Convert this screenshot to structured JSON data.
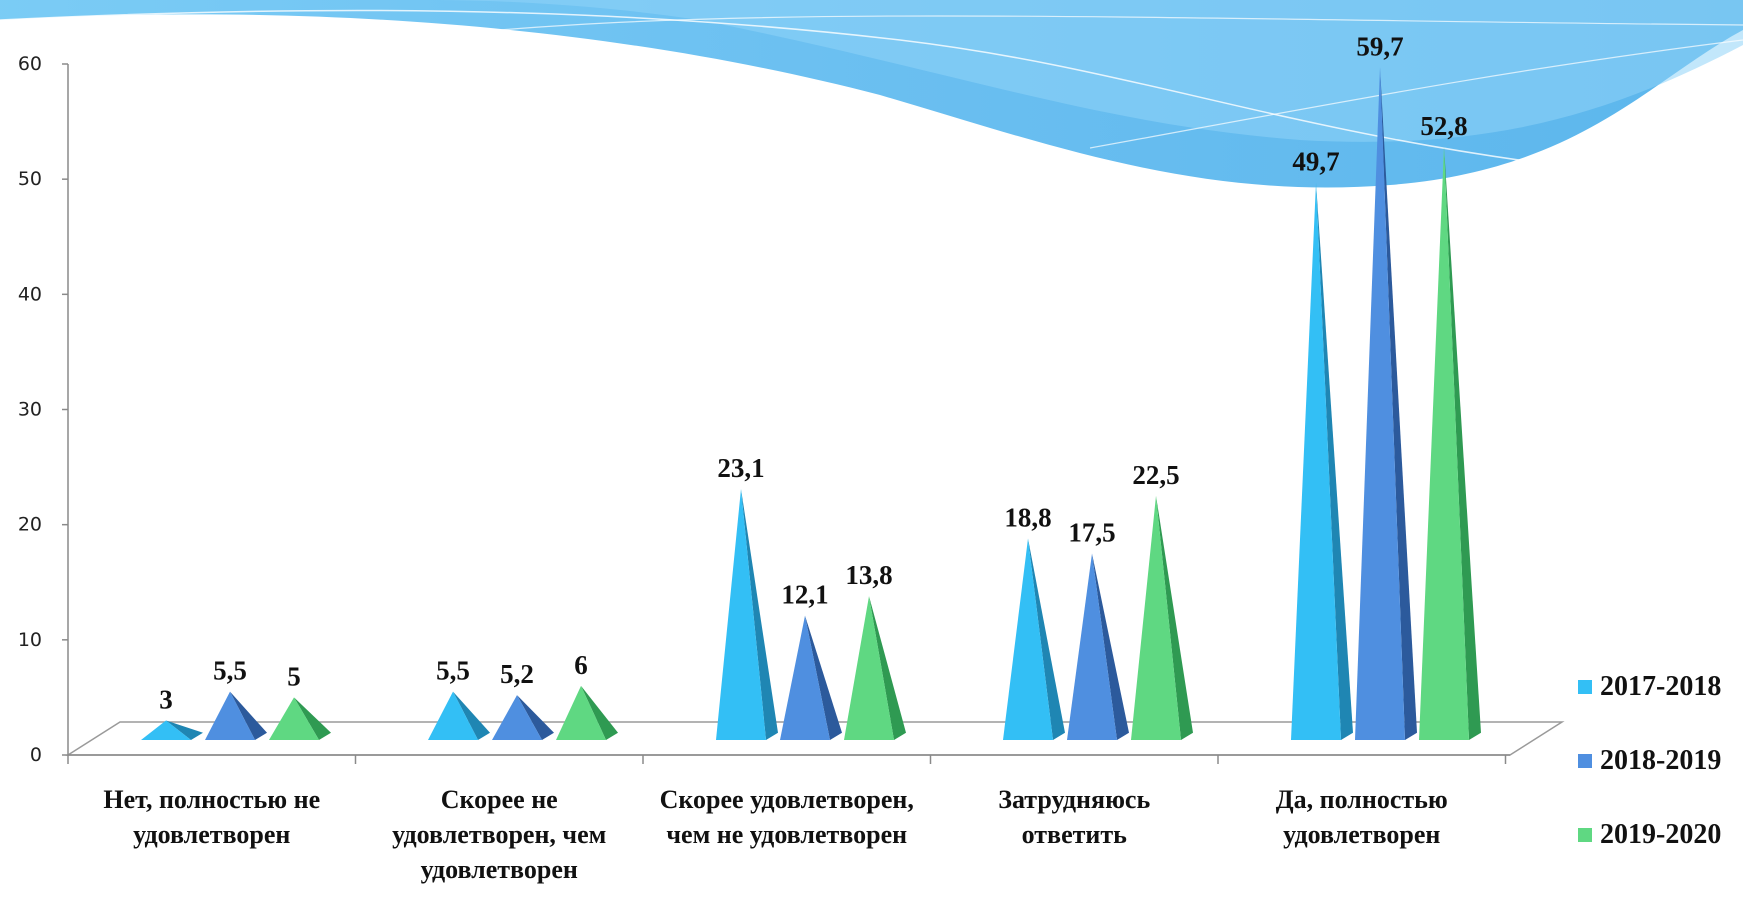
{
  "chart_data": {
    "type": "bar",
    "title": "",
    "xlabel": "",
    "ylabel": "",
    "ylim": [
      0,
      60
    ],
    "yticks": [
      "0",
      "10",
      "20",
      "30",
      "40",
      "50",
      "60"
    ],
    "categories": [
      "Нет, полностью не удовлетворен",
      "Скорее не удовлетворен, чем удовлетворен",
      "Скорее удовлетворен, чем не удовлетворен",
      "Затрудняюсь ответить",
      "Да, полностью удовлетворен"
    ],
    "series": [
      {
        "name": "2017-2018",
        "color": "#33bff5",
        "dark": "#1f86b3",
        "values": [
          3,
          5.5,
          23.1,
          18.8,
          49.7
        ],
        "labels": [
          "3",
          "5,5",
          "23,1",
          "18,8",
          "49,7"
        ]
      },
      {
        "name": "2018-2019",
        "color": "#4f8fe0",
        "dark": "#2c5a9c",
        "values": [
          5.5,
          5.2,
          12.1,
          17.5,
          59.7
        ],
        "labels": [
          "5,5",
          "5,2",
          "12,1",
          "17,5",
          "59,7"
        ]
      },
      {
        "name": "2019-2020",
        "color": "#5fd882",
        "dark": "#2f9a52",
        "values": [
          5,
          6,
          13.8,
          22.5,
          52.8
        ],
        "labels": [
          "5",
          "6",
          "13,8",
          "22,5",
          "52,8"
        ]
      }
    ],
    "legend_position": "right",
    "grid": false,
    "mark_shape": "pyramid"
  }
}
